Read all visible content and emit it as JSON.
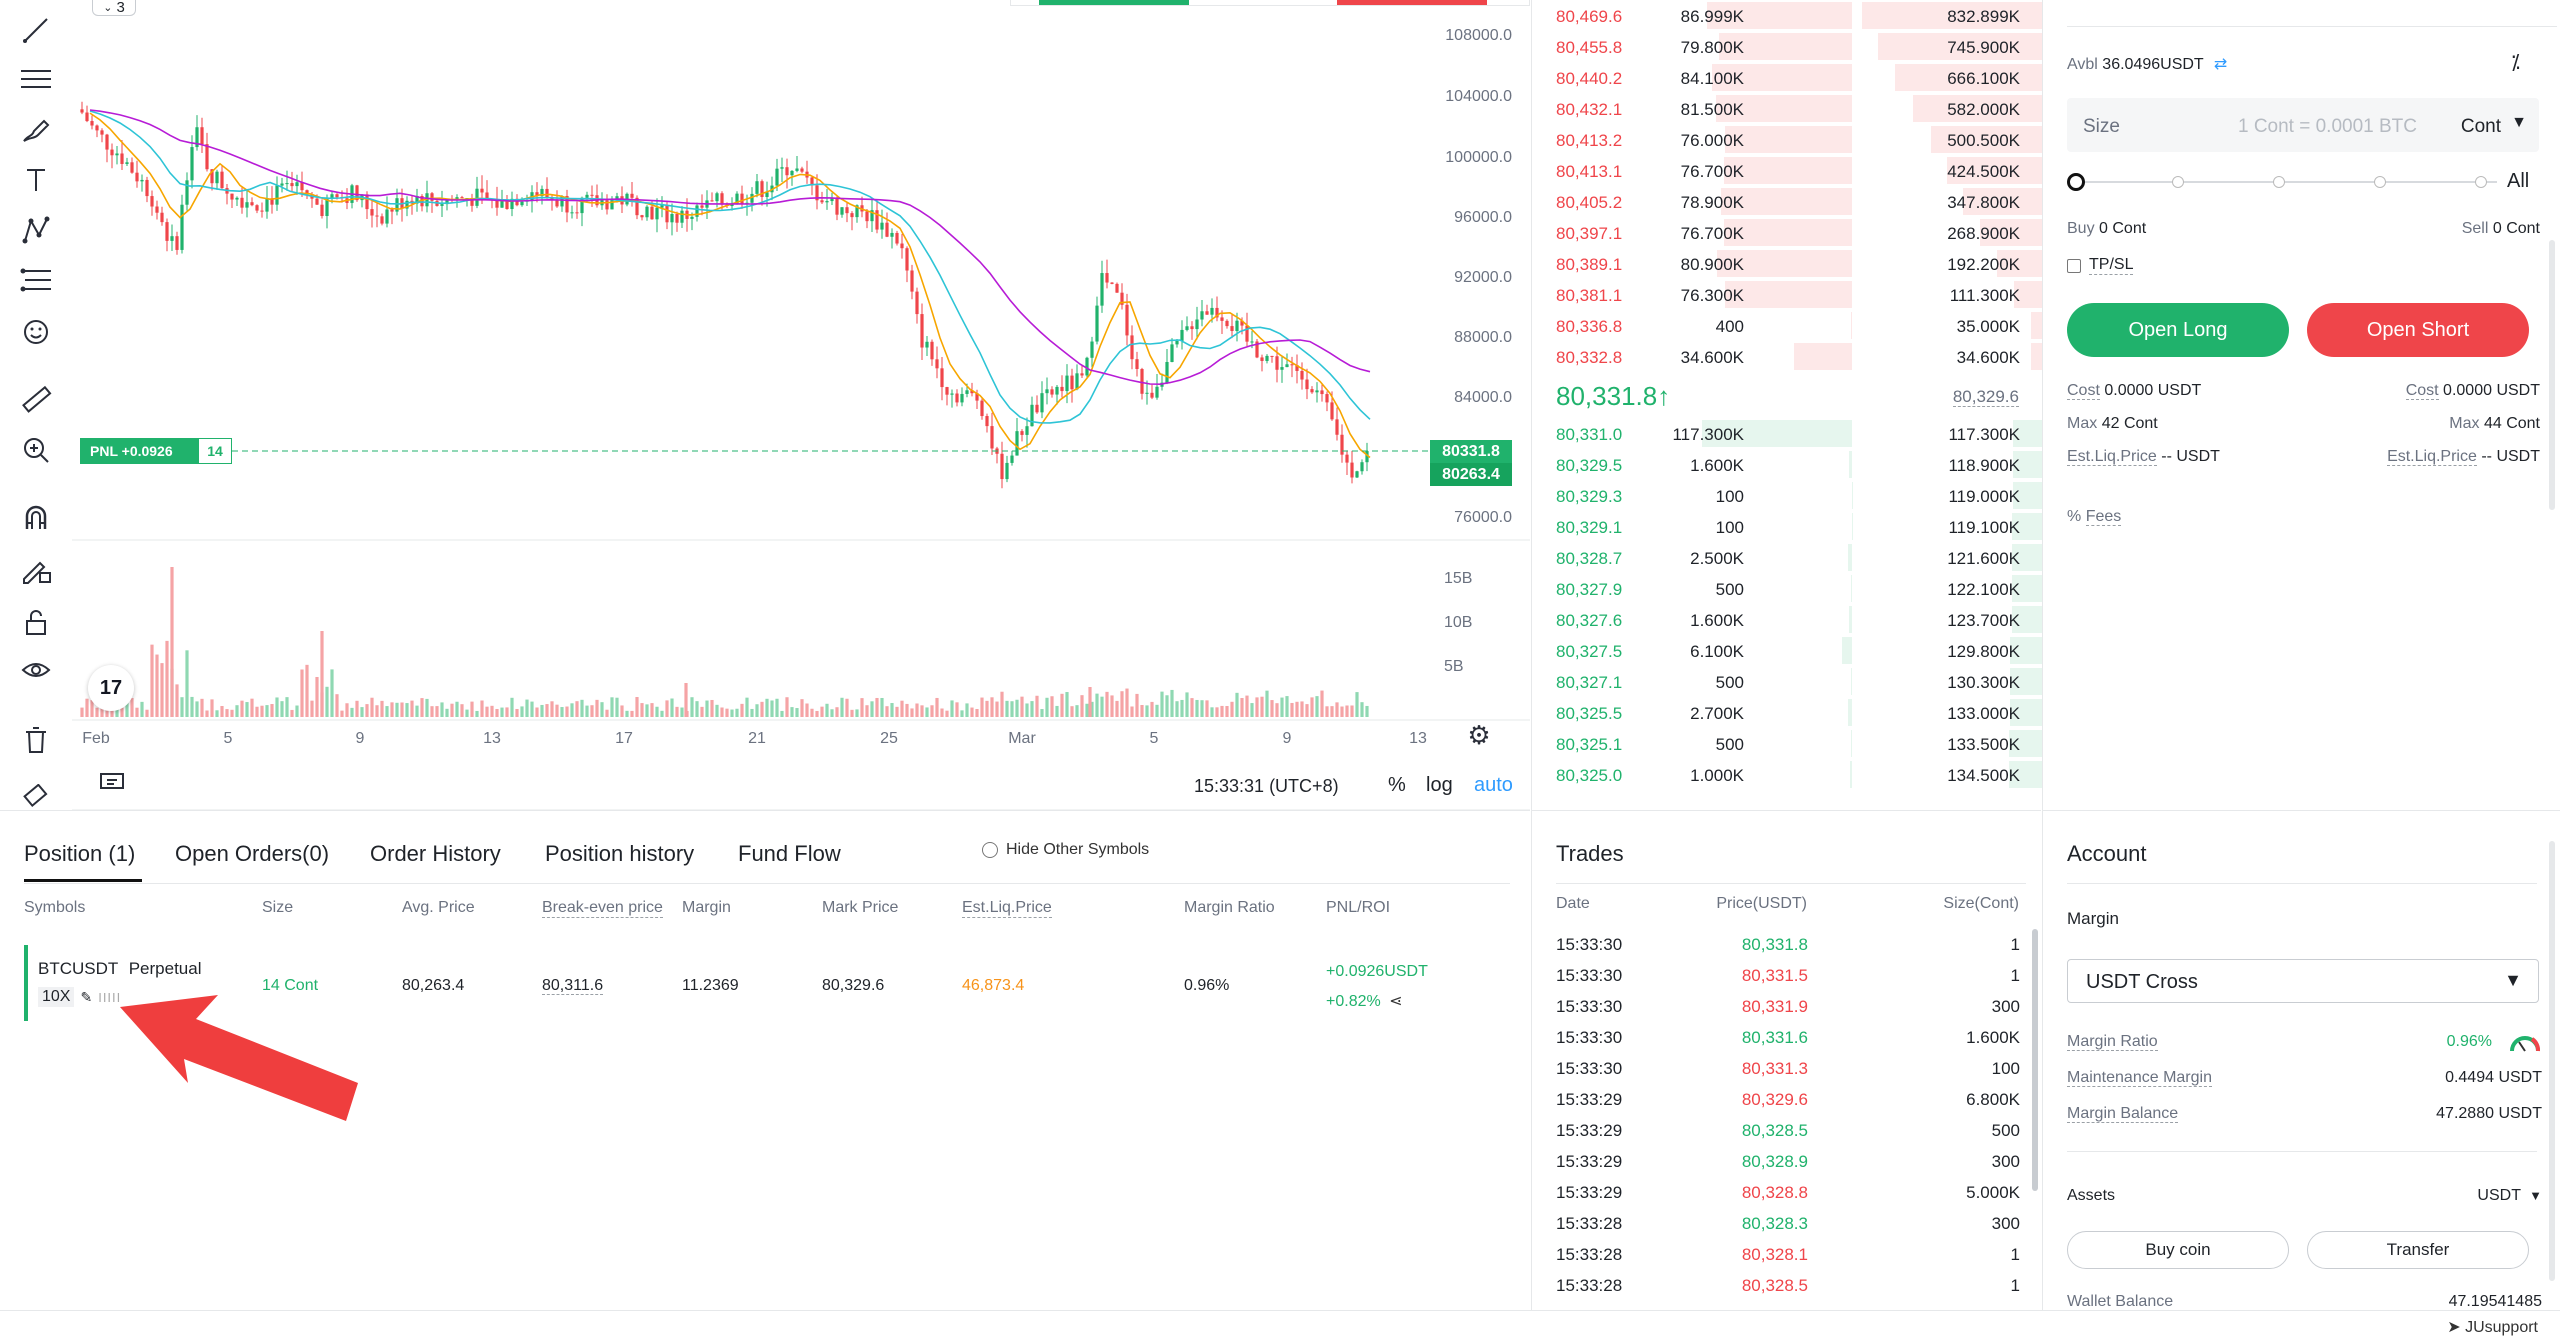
{
  "chart": {
    "interval_badge": "3",
    "price_labels": [
      "108000.0",
      "104000.0",
      "100000.0",
      "96000.0",
      "92000.0",
      "88000.0",
      "84000.0",
      "76000.0"
    ],
    "current_price_tag": "80331.8",
    "entry_price_tag": "80263.4",
    "pnl_label": "PNL +0.0926",
    "pnl_qty": "14",
    "volume_labels": [
      "15B",
      "10B",
      "5B"
    ],
    "date_labels": [
      "Feb",
      "5",
      "9",
      "13",
      "17",
      "21",
      "25",
      "Mar",
      "5",
      "9",
      "13"
    ],
    "time_display": "15:33:31 (UTC+8)",
    "percent_btn": "%",
    "log_btn": "log",
    "auto_btn": "auto",
    "tv_logo": "17"
  },
  "orderbook": {
    "asks": [
      {
        "price": "80,469.6",
        "size": "86.999K",
        "total": "832.899K"
      },
      {
        "price": "80,455.8",
        "size": "79.800K",
        "total": "745.900K"
      },
      {
        "price": "80,440.2",
        "size": "84.100K",
        "total": "666.100K"
      },
      {
        "price": "80,432.1",
        "size": "81.500K",
        "total": "582.000K"
      },
      {
        "price": "80,413.2",
        "size": "76.000K",
        "total": "500.500K"
      },
      {
        "price": "80,413.1",
        "size": "76.700K",
        "total": "424.500K"
      },
      {
        "price": "80,405.2",
        "size": "78.900K",
        "total": "347.800K"
      },
      {
        "price": "80,397.1",
        "size": "76.700K",
        "total": "268.900K"
      },
      {
        "price": "80,389.1",
        "size": "80.900K",
        "total": "192.200K"
      },
      {
        "price": "80,381.1",
        "size": "76.300K",
        "total": "111.300K"
      },
      {
        "price": "80,336.8",
        "size": "400",
        "total": "35.000K"
      },
      {
        "price": "80,332.8",
        "size": "34.600K",
        "total": "34.600K"
      }
    ],
    "last_price": "80,331.8",
    "last_arrow": "↑",
    "mark_price": "80,329.6",
    "bids": [
      {
        "price": "80,331.0",
        "size": "117.300K",
        "total": "117.300K"
      },
      {
        "price": "80,329.5",
        "size": "1.600K",
        "total": "118.900K"
      },
      {
        "price": "80,329.3",
        "size": "100",
        "total": "119.000K"
      },
      {
        "price": "80,329.1",
        "size": "100",
        "total": "119.100K"
      },
      {
        "price": "80,328.7",
        "size": "2.500K",
        "total": "121.600K"
      },
      {
        "price": "80,327.9",
        "size": "500",
        "total": "122.100K"
      },
      {
        "price": "80,327.6",
        "size": "1.600K",
        "total": "123.700K"
      },
      {
        "price": "80,327.5",
        "size": "6.100K",
        "total": "129.800K"
      },
      {
        "price": "80,327.1",
        "size": "500",
        "total": "130.300K"
      },
      {
        "price": "80,325.5",
        "size": "2.700K",
        "total": "133.000K"
      },
      {
        "price": "80,325.1",
        "size": "500",
        "total": "133.500K"
      },
      {
        "price": "80,325.0",
        "size": "1.000K",
        "total": "134.500K"
      }
    ]
  },
  "trade_panel": {
    "avbl_label": "Avbl",
    "avbl_value": "36.0496USDT",
    "size_label": "Size",
    "size_placeholder": "1 Cont = 0.0001 BTC",
    "size_unit": "Cont",
    "slider_all": "All",
    "buy_label": "Buy",
    "buy_value": "0 Cont",
    "sell_label": "Sell",
    "sell_value": "0 Cont",
    "tpsl_label": "TP/SL",
    "open_long": "Open Long",
    "open_short": "Open Short",
    "cost_label": "Cost",
    "cost_long": "0.0000",
    "cost_short": "0.0000",
    "cost_unit": "USDT",
    "max_label": "Max",
    "max_long": "42",
    "max_short": "44",
    "max_unit": "Cont",
    "liq_label": "Est.Liq.Price",
    "liq_long": "--",
    "liq_short": "--",
    "liq_unit": "USDT",
    "fees_label": "Fees"
  },
  "positions": {
    "tabs": [
      "Position (1)",
      "Open Orders(0)",
      "Order History",
      "Position history",
      "Fund Flow"
    ],
    "hide_other": "Hide Other Symbols",
    "headers": [
      "Symbols",
      "Size",
      "Avg. Price",
      "Break-even price",
      "Margin",
      "Mark Price",
      "Est.Liq.Price",
      "Margin Ratio",
      "PNL/ROI"
    ],
    "row": {
      "symbol": "BTCUSDT",
      "type": "Perpetual",
      "leverage": "10X",
      "bars": "IIIII",
      "size": "14 Cont",
      "avg_price": "80,263.4",
      "breakeven": "80,311.6",
      "margin": "11.2369",
      "mark_price": "80,329.6",
      "liq_price": "46,873.4",
      "margin_ratio": "0.96%",
      "pnl": "+0.0926USDT",
      "roi": "+0.82%"
    }
  },
  "trades": {
    "title": "Trades",
    "headers": [
      "Date",
      "Price(USDT)",
      "Size(Cont)"
    ],
    "rows": [
      {
        "time": "15:33:30",
        "price": "80,331.8",
        "size": "1",
        "side": "buy"
      },
      {
        "time": "15:33:30",
        "price": "80,331.5",
        "size": "1",
        "side": "sell"
      },
      {
        "time": "15:33:30",
        "price": "80,331.9",
        "size": "300",
        "side": "sell"
      },
      {
        "time": "15:33:30",
        "price": "80,331.6",
        "size": "1.600K",
        "side": "buy"
      },
      {
        "time": "15:33:30",
        "price": "80,331.3",
        "size": "100",
        "side": "sell"
      },
      {
        "time": "15:33:29",
        "price": "80,329.6",
        "size": "6.800K",
        "side": "sell"
      },
      {
        "time": "15:33:29",
        "price": "80,328.5",
        "size": "500",
        "side": "buy"
      },
      {
        "time": "15:33:29",
        "price": "80,328.9",
        "size": "300",
        "side": "buy"
      },
      {
        "time": "15:33:29",
        "price": "80,328.8",
        "size": "5.000K",
        "side": "sell"
      },
      {
        "time": "15:33:28",
        "price": "80,328.3",
        "size": "300",
        "side": "buy"
      },
      {
        "time": "15:33:28",
        "price": "80,328.1",
        "size": "1",
        "side": "sell"
      },
      {
        "time": "15:33:28",
        "price": "80,328.5",
        "size": "1",
        "side": "sell"
      }
    ]
  },
  "account": {
    "title": "Account",
    "margin_label": "Margin",
    "margin_mode": "USDT Cross",
    "margin_ratio_label": "Margin Ratio",
    "margin_ratio_value": "0.96%",
    "maint_margin_label": "Maintenance Margin",
    "maint_margin_value": "0.4494 USDT",
    "margin_balance_label": "Margin Balance",
    "margin_balance_value": "47.2880 USDT",
    "assets_label": "Assets",
    "assets_unit": "USDT",
    "buy_coin": "Buy coin",
    "transfer": "Transfer",
    "wallet_balance_label": "Wallet Balance",
    "wallet_balance_value": "47.19541485"
  },
  "footer": {
    "support": "JUsupport"
  },
  "colors": {
    "green": "#20b26c",
    "red": "#ef454a",
    "orange": "#f7931a"
  }
}
